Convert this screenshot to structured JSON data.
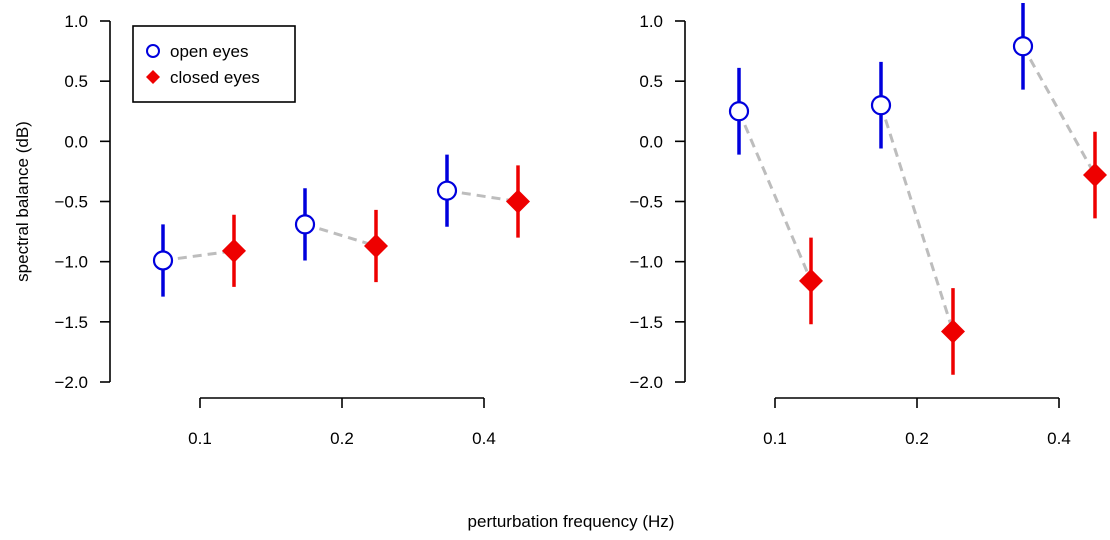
{
  "chart_data": [
    {
      "type": "scatter",
      "panel": "left",
      "ylabel": "spectral balance (dB)",
      "ylim": [
        -2.0,
        1.0
      ],
      "yticks": [
        -2.0,
        -1.5,
        -1.0,
        -0.5,
        0.0,
        0.5,
        1.0
      ],
      "ytick_labels": [
        "−2.0",
        "−1.5",
        "−1.0",
        "−0.5",
        "0.0",
        "0.5",
        "1.0"
      ],
      "categories": [
        "0.1",
        "0.2",
        "0.4"
      ],
      "legend": {
        "placement": "top-left",
        "entries": [
          {
            "label": "open eyes",
            "marker": "open-circle",
            "color": "#0000dd"
          },
          {
            "label": "closed eyes",
            "marker": "filled-diamond",
            "color": "#ee0000"
          }
        ]
      },
      "series": [
        {
          "name": "open eyes",
          "color": "#0000dd",
          "marker": "open-circle",
          "values": [
            -0.99,
            -0.69,
            -0.41
          ],
          "err_low": [
            -1.29,
            -0.99,
            -0.71
          ],
          "err_high": [
            -0.69,
            -0.39,
            -0.11
          ]
        },
        {
          "name": "closed eyes",
          "color": "#ee0000",
          "marker": "filled-diamond",
          "values": [
            -0.91,
            -0.87,
            -0.5
          ],
          "err_low": [
            -1.21,
            -1.17,
            -0.8
          ],
          "err_high": [
            -0.61,
            -0.57,
            -0.2
          ]
        }
      ],
      "connector_color": "#bdbdbd",
      "grid": false
    },
    {
      "type": "scatter",
      "panel": "right",
      "ylabel": "",
      "ylim": [
        -2.0,
        1.0
      ],
      "yticks": [
        -2.0,
        -1.5,
        -1.0,
        -0.5,
        0.0,
        0.5,
        1.0
      ],
      "ytick_labels": [
        "−2.0",
        "−1.5",
        "−1.0",
        "−0.5",
        "0.0",
        "0.5",
        "1.0"
      ],
      "categories": [
        "0.1",
        "0.2",
        "0.4"
      ],
      "series": [
        {
          "name": "open eyes",
          "color": "#0000dd",
          "marker": "open-circle",
          "values": [
            0.25,
            0.3,
            0.79
          ],
          "err_low": [
            -0.11,
            -0.06,
            0.43
          ],
          "err_high": [
            0.61,
            0.66,
            1.15
          ]
        },
        {
          "name": "closed eyes",
          "color": "#ee0000",
          "marker": "filled-diamond",
          "values": [
            -1.16,
            -1.58,
            -0.28
          ],
          "err_low": [
            -1.52,
            -1.94,
            -0.64
          ],
          "err_high": [
            -0.8,
            -1.22,
            0.08
          ]
        }
      ],
      "connector_color": "#bdbdbd",
      "grid": false
    }
  ],
  "shared_xlabel": "perturbation frequency (Hz)"
}
